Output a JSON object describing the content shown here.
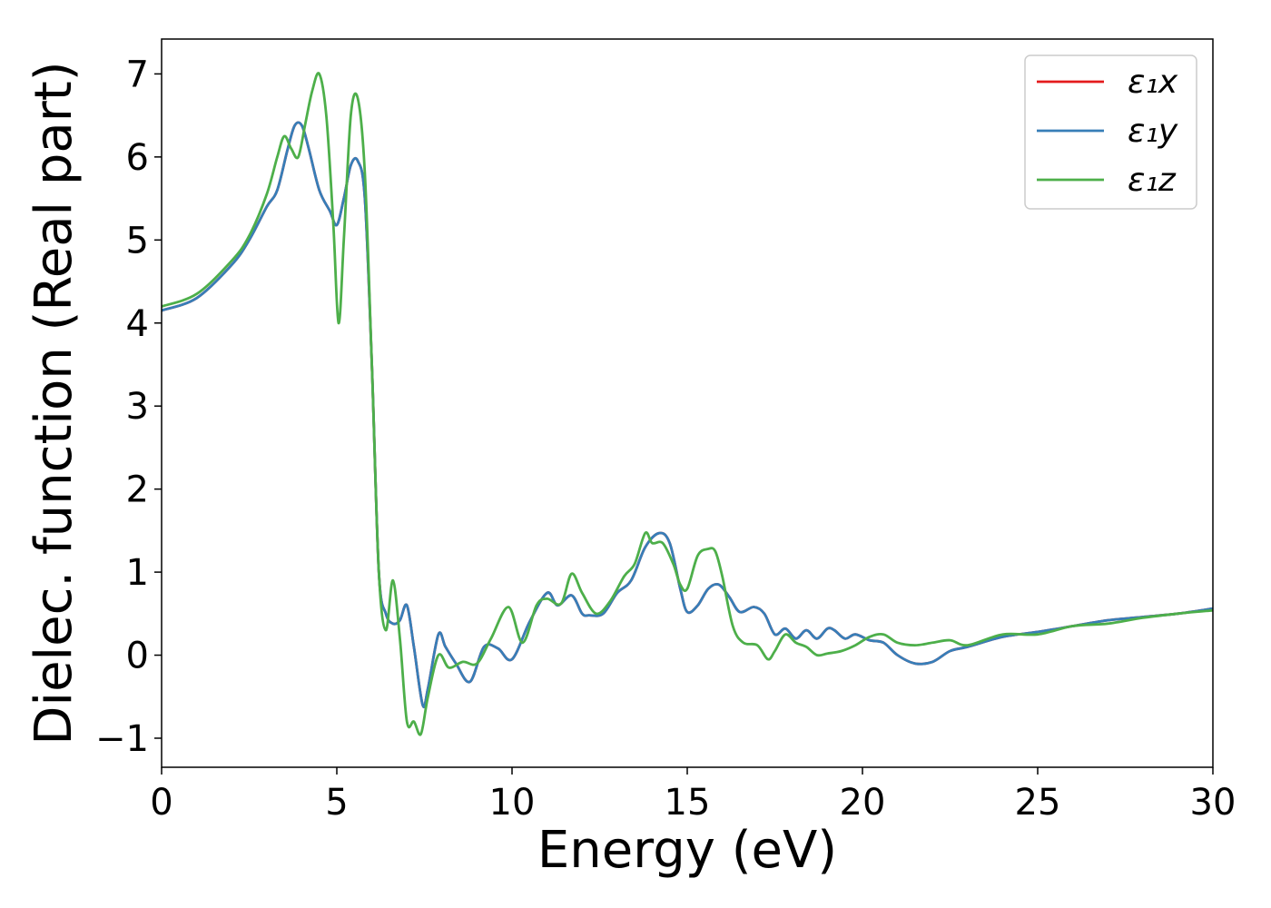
{
  "chart_data": {
    "type": "line",
    "xlabel": "Energy (eV)",
    "ylabel": "Dielec. function (Real part)",
    "xlim": [
      0,
      30
    ],
    "ylim": [
      -1.35,
      7.42
    ],
    "xticks": [
      0,
      5,
      10,
      15,
      20,
      25,
      30
    ],
    "xtick_labels": [
      "0",
      "5",
      "10",
      "15",
      "20",
      "25",
      "30"
    ],
    "yticks": [
      -1,
      0,
      1,
      2,
      3,
      4,
      5,
      6,
      7
    ],
    "ytick_labels": [
      "−1",
      "0",
      "1",
      "2",
      "3",
      "4",
      "5",
      "6",
      "7"
    ],
    "grid": false,
    "legend_position": "top-right",
    "series": [
      {
        "name": "ε₁x",
        "color": "#e41a1c",
        "x": [
          0,
          1,
          2,
          2.5,
          3,
          3.3,
          3.6,
          3.8,
          4.0,
          4.2,
          4.5,
          4.8,
          5.0,
          5.2,
          5.4,
          5.6,
          5.8,
          6.0,
          6.2,
          6.4,
          6.6,
          6.8,
          7.0,
          7.2,
          7.45,
          7.6,
          7.9,
          8.1,
          8.4,
          8.8,
          9.2,
          9.6,
          10.0,
          10.5,
          11.0,
          11.3,
          11.7,
          12.0,
          12.2,
          12.6,
          13.0,
          13.4,
          13.8,
          14.2,
          14.5,
          14.8,
          15.0,
          15.3,
          15.6,
          15.9,
          16.2,
          16.5,
          16.9,
          17.2,
          17.5,
          17.8,
          18.1,
          18.4,
          18.7,
          19.0,
          19.2,
          19.5,
          19.8,
          20.2,
          20.6,
          21.0,
          21.5,
          22.0,
          22.5,
          23.0,
          24.0,
          25.0,
          26.0,
          27.0,
          28.0,
          29.0,
          30.0
        ],
        "y": [
          4.15,
          4.3,
          4.7,
          5.0,
          5.4,
          5.6,
          6.1,
          6.38,
          6.38,
          6.1,
          5.6,
          5.35,
          5.18,
          5.5,
          5.9,
          5.95,
          5.5,
          3.5,
          1.0,
          0.5,
          0.38,
          0.42,
          0.6,
          0.1,
          -0.6,
          -0.4,
          0.25,
          0.1,
          -0.1,
          -0.32,
          0.1,
          0.08,
          -0.05,
          0.4,
          0.75,
          0.6,
          0.72,
          0.5,
          0.48,
          0.5,
          0.75,
          0.9,
          1.3,
          1.47,
          1.35,
          0.8,
          0.52,
          0.6,
          0.8,
          0.85,
          0.7,
          0.52,
          0.58,
          0.5,
          0.25,
          0.32,
          0.2,
          0.3,
          0.2,
          0.32,
          0.3,
          0.2,
          0.25,
          0.18,
          0.15,
          0.0,
          -0.1,
          -0.08,
          0.05,
          0.1,
          0.22,
          0.28,
          0.35,
          0.42,
          0.46,
          0.5,
          0.56
        ]
      },
      {
        "name": "ε₁y",
        "color": "#377eb8",
        "x": [
          0,
          1,
          2,
          2.5,
          3,
          3.3,
          3.6,
          3.8,
          4.0,
          4.2,
          4.5,
          4.8,
          5.0,
          5.2,
          5.4,
          5.6,
          5.8,
          6.0,
          6.2,
          6.4,
          6.6,
          6.8,
          7.0,
          7.2,
          7.45,
          7.6,
          7.9,
          8.1,
          8.4,
          8.8,
          9.2,
          9.6,
          10.0,
          10.5,
          11.0,
          11.3,
          11.7,
          12.0,
          12.2,
          12.6,
          13.0,
          13.4,
          13.8,
          14.2,
          14.5,
          14.8,
          15.0,
          15.3,
          15.6,
          15.9,
          16.2,
          16.5,
          16.9,
          17.2,
          17.5,
          17.8,
          18.1,
          18.4,
          18.7,
          19.0,
          19.2,
          19.5,
          19.8,
          20.2,
          20.6,
          21.0,
          21.5,
          22.0,
          22.5,
          23.0,
          24.0,
          25.0,
          26.0,
          27.0,
          28.0,
          29.0,
          30.0
        ],
        "y": [
          4.15,
          4.3,
          4.7,
          5.0,
          5.4,
          5.6,
          6.1,
          6.38,
          6.38,
          6.1,
          5.6,
          5.35,
          5.18,
          5.5,
          5.9,
          5.95,
          5.5,
          3.5,
          1.0,
          0.5,
          0.38,
          0.42,
          0.6,
          0.1,
          -0.6,
          -0.4,
          0.25,
          0.1,
          -0.1,
          -0.32,
          0.1,
          0.08,
          -0.05,
          0.4,
          0.75,
          0.6,
          0.72,
          0.5,
          0.48,
          0.5,
          0.75,
          0.9,
          1.3,
          1.47,
          1.35,
          0.8,
          0.52,
          0.6,
          0.8,
          0.85,
          0.7,
          0.52,
          0.58,
          0.5,
          0.25,
          0.32,
          0.2,
          0.3,
          0.2,
          0.32,
          0.3,
          0.2,
          0.25,
          0.18,
          0.15,
          0.0,
          -0.1,
          -0.08,
          0.05,
          0.1,
          0.22,
          0.28,
          0.35,
          0.42,
          0.46,
          0.5,
          0.56
        ]
      },
      {
        "name": "ε₁z",
        "color": "#4daf4a",
        "x": [
          0,
          1,
          2,
          2.5,
          3.0,
          3.3,
          3.5,
          3.7,
          3.9,
          4.1,
          4.3,
          4.5,
          4.7,
          4.9,
          5.05,
          5.2,
          5.4,
          5.6,
          5.8,
          6.0,
          6.2,
          6.4,
          6.6,
          6.8,
          7.0,
          7.2,
          7.4,
          7.6,
          7.9,
          8.2,
          8.6,
          9.0,
          9.4,
          9.9,
          10.3,
          10.7,
          11.0,
          11.4,
          11.7,
          12.0,
          12.4,
          12.8,
          13.2,
          13.5,
          13.8,
          14.0,
          14.3,
          14.6,
          14.8,
          15.0,
          15.3,
          15.6,
          15.8,
          16.0,
          16.3,
          16.6,
          17.0,
          17.3,
          17.5,
          17.8,
          18.1,
          18.4,
          18.7,
          19.0,
          19.4,
          19.8,
          20.2,
          20.6,
          21.0,
          21.5,
          22.0,
          22.5,
          23.0,
          24.0,
          25.0,
          26.0,
          27.0,
          28.0,
          29.0,
          30.0
        ],
        "y": [
          4.2,
          4.35,
          4.75,
          5.05,
          5.55,
          6.0,
          6.25,
          6.1,
          6.0,
          6.4,
          6.8,
          7.0,
          6.5,
          5.2,
          4.0,
          5.0,
          6.5,
          6.7,
          5.8,
          3.5,
          1.0,
          0.3,
          0.9,
          0.2,
          -0.8,
          -0.8,
          -0.95,
          -0.5,
          0.0,
          -0.15,
          -0.08,
          -0.1,
          0.2,
          0.58,
          0.15,
          0.6,
          0.68,
          0.62,
          0.98,
          0.75,
          0.5,
          0.65,
          0.95,
          1.1,
          1.47,
          1.35,
          1.35,
          1.1,
          0.85,
          0.8,
          1.2,
          1.28,
          1.25,
          0.95,
          0.35,
          0.15,
          0.12,
          -0.05,
          0.05,
          0.25,
          0.15,
          0.1,
          0.0,
          0.02,
          0.05,
          0.12,
          0.22,
          0.25,
          0.15,
          0.12,
          0.15,
          0.18,
          0.12,
          0.25,
          0.25,
          0.35,
          0.38,
          0.45,
          0.5,
          0.54
        ]
      }
    ]
  }
}
